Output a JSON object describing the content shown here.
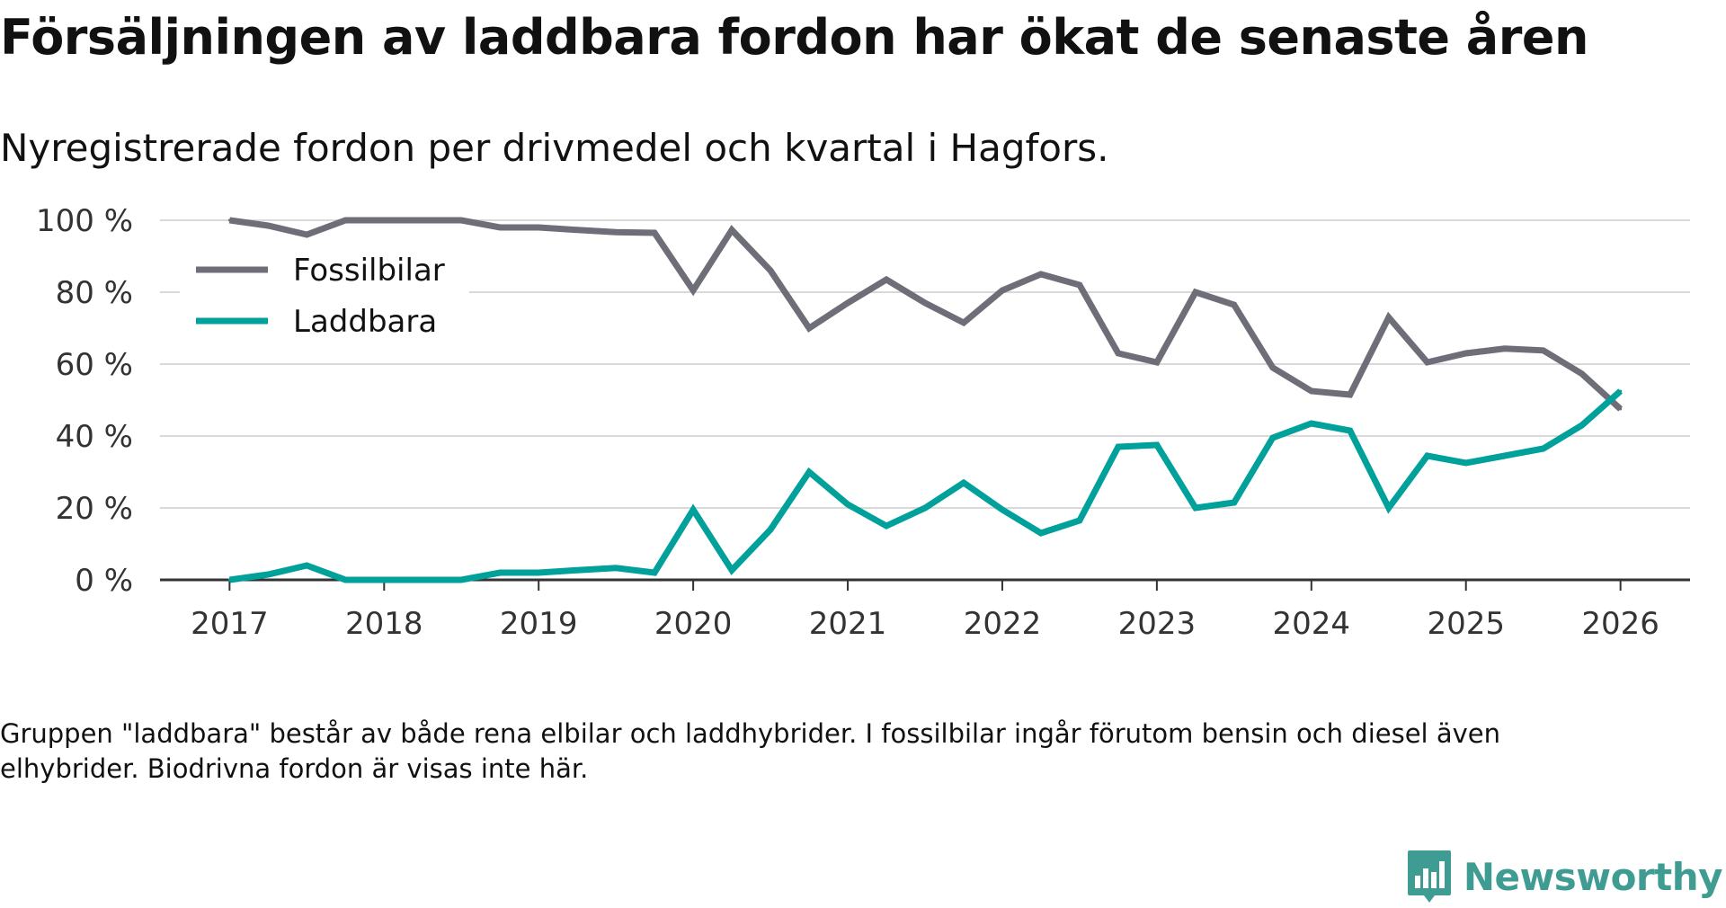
{
  "title": "Försäljningen av laddbara fordon har ökat de senaste åren",
  "subtitle": "Nyregistrerade fordon per drivmedel och kvartal i Hagfors.",
  "note": "Gruppen \"laddbara\" består av både rena elbilar och laddhybrider. I fossilbilar ingår förutom bensin och diesel även elhybrider. Biodrivna fordon är visas inte här.",
  "logo": {
    "text": "Newsworthy",
    "icon": "newsworthy-bar-icon"
  },
  "colors": {
    "fossil": "#6e6e78",
    "laddbara": "#00a19a",
    "grid": "#d9d9d9",
    "axis": "#333333",
    "logo": "#3f9c93"
  },
  "chart_data": {
    "type": "line",
    "title": "Försäljningen av laddbara fordon har ökat de senaste åren",
    "subtitle": "Nyregistrerade fordon per drivmedel och kvartal i Hagfors.",
    "xlabel": "",
    "ylabel": "",
    "ylim": [
      0,
      100
    ],
    "xlim": [
      2016.55,
      2026.45
    ],
    "y_ticks": [
      0,
      20,
      40,
      60,
      80,
      100
    ],
    "y_tick_labels": [
      "0 %",
      "20 %",
      "40 %",
      "60 %",
      "80 %",
      "100 %"
    ],
    "x_ticks": [
      2017,
      2018,
      2019,
      2020,
      2021,
      2022,
      2023,
      2024,
      2025,
      2026
    ],
    "x_tick_labels": [
      "2017",
      "2018",
      "2019",
      "2020",
      "2021",
      "2022",
      "2023",
      "2024",
      "2025",
      "2026"
    ],
    "grid": true,
    "legend_position": "top-left",
    "x": [
      2017,
      2017.25,
      2017.5,
      2017.75,
      2018,
      2018.25,
      2018.5,
      2018.75,
      2019,
      2019.25,
      2019.5,
      2019.75,
      2020,
      2020.25,
      2020.5,
      2020.75,
      2021,
      2021.25,
      2021.5,
      2021.75,
      2022,
      2022.25,
      2022.5,
      2022.75,
      2023,
      2023.25,
      2023.5,
      2023.75,
      2024,
      2024.25,
      2024.5,
      2024.75,
      2025,
      2025.25,
      2025.5,
      2025.75,
      2026
    ],
    "series": [
      {
        "name": "Fossilbilar",
        "color": "#6e6e78",
        "values": [
          100,
          98.5,
          96,
          100,
          100,
          100,
          100,
          98,
          98,
          97.3,
          96.7,
          96.5,
          80.5,
          97.3,
          86,
          70,
          77,
          83.5,
          77,
          71.5,
          80.5,
          85,
          82,
          63,
          60.5,
          80,
          76.5,
          59,
          52.5,
          51.5,
          73,
          60.5,
          63,
          64.3,
          63.8,
          57.3,
          47.5
        ]
      },
      {
        "name": "Laddbara",
        "color": "#00a19a",
        "values": [
          0,
          1.5,
          4,
          0,
          0,
          0,
          0,
          2,
          2,
          2.7,
          3.3,
          2,
          19.5,
          2.7,
          14,
          30,
          21,
          15,
          20,
          27,
          19.5,
          13,
          16.5,
          37,
          37.5,
          20,
          21.5,
          39.5,
          43.5,
          41.5,
          20,
          34.5,
          32.5,
          34.5,
          36.5,
          43,
          52.5
        ]
      }
    ]
  }
}
